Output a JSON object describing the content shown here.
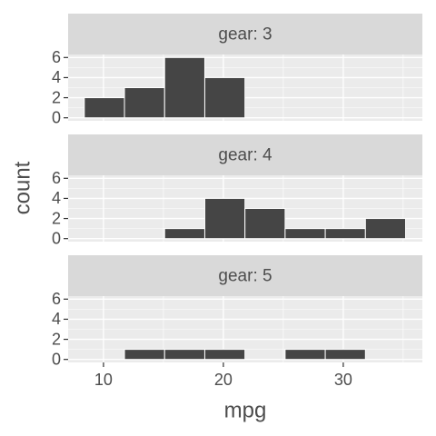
{
  "chart_data": {
    "type": "histogram",
    "x_label": "mpg",
    "y_label": "count",
    "bins": [
      8.4,
      11.75,
      15.1,
      18.45,
      21.8,
      25.15,
      28.5,
      31.85,
      35.2
    ],
    "xlim": [
      7.05,
      36.6
    ],
    "xticks": [
      10,
      20,
      30
    ],
    "ylim": [
      -0.3,
      6.3
    ],
    "yticks": [
      0,
      2,
      4,
      6
    ],
    "color": "#454545",
    "grid": true,
    "facets": [
      {
        "title": "gear: 3",
        "values": [
          2,
          3,
          6,
          4,
          0,
          0,
          0,
          0
        ]
      },
      {
        "title": "gear: 4",
        "values": [
          0,
          0,
          1,
          4,
          3,
          1,
          1,
          2
        ]
      },
      {
        "title": "gear: 5",
        "values": [
          0,
          1,
          1,
          1,
          0,
          1,
          1,
          0
        ]
      }
    ]
  }
}
